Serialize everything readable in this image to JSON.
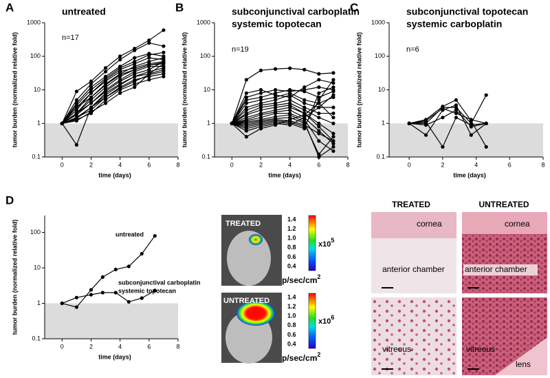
{
  "chart_data": [
    {
      "type": "line",
      "panel_label": "A",
      "title": [
        "untreated"
      ],
      "annotation": "n=17",
      "x_label": "time (days)",
      "y_label": "tumor burden (normalized relative fold)",
      "log_y": true,
      "x": [
        0,
        1,
        2,
        3,
        4,
        5,
        6,
        7
      ],
      "xlim": [
        -1.2,
        8
      ],
      "xticks": [
        0,
        2,
        4,
        6,
        8
      ],
      "ylim": [
        0.1,
        1000
      ],
      "yticks": [
        0.1,
        1,
        10,
        100,
        1000
      ],
      "shaded_region": [
        0.1,
        1
      ],
      "series": [
        {
          "color": "#000000",
          "values": [
            1,
            9,
            18,
            45,
            100,
            170,
            300,
            600
          ]
        },
        {
          "color": "#000000",
          "values": [
            1,
            5,
            15,
            35,
            80,
            150,
            250,
            200
          ]
        },
        {
          "color": "#000000",
          "values": [
            1,
            4,
            12,
            25,
            50,
            90,
            120,
            100
          ]
        },
        {
          "color": "#000000",
          "values": [
            1,
            3,
            8,
            20,
            40,
            60,
            90,
            80
          ]
        },
        {
          "color": "#000000",
          "values": [
            1,
            3,
            6,
            15,
            30,
            50,
            70,
            90
          ]
        },
        {
          "color": "#000000",
          "values": [
            1,
            2.5,
            8,
            18,
            35,
            45,
            60,
            70
          ]
        },
        {
          "color": "#000000",
          "values": [
            1,
            2,
            5,
            12,
            25,
            40,
            55,
            60
          ]
        },
        {
          "color": "#000000",
          "values": [
            1,
            2,
            4,
            10,
            20,
            35,
            50,
            50
          ]
        },
        {
          "color": "#000000",
          "values": [
            1,
            1.8,
            4,
            9,
            18,
            30,
            40,
            70
          ]
        },
        {
          "color": "#000000",
          "values": [
            1,
            1.5,
            3,
            8,
            15,
            25,
            30,
            40
          ]
        },
        {
          "color": "#000000",
          "values": [
            1,
            1.5,
            2.5,
            6,
            12,
            20,
            25,
            30
          ]
        },
        {
          "color": "#000000",
          "values": [
            1,
            1.3,
            2,
            5,
            10,
            15,
            20,
            25
          ]
        },
        {
          "color": "#000000",
          "values": [
            1,
            0.23,
            3,
            7,
            14,
            25,
            35,
            45
          ]
        },
        {
          "color": "#000000",
          "values": [
            1,
            1.2,
            2.2,
            4,
            8,
            12,
            30,
            60
          ]
        },
        {
          "color": "#000000",
          "values": [
            1,
            2,
            6,
            14,
            28,
            40,
            55,
            65
          ]
        },
        {
          "color": "#000000",
          "values": [
            1,
            3.5,
            10,
            22,
            45,
            70,
            110,
            130
          ]
        },
        {
          "color": "#000000",
          "values": [
            1,
            1.4,
            3,
            6,
            11,
            18,
            28,
            35
          ]
        }
      ]
    },
    {
      "type": "line",
      "panel_label": "B",
      "title": [
        "subconjunctival carboplatin",
        "systemic topotecan"
      ],
      "annotation": "n=19",
      "x_label": "time (days)",
      "y_label": "tumor burden (normalized relative fold)",
      "log_y": true,
      "x": [
        0,
        1,
        2,
        3,
        4,
        5,
        6,
        7
      ],
      "xlim": [
        -1.2,
        8
      ],
      "xticks": [
        0,
        2,
        4,
        6,
        8
      ],
      "ylim": [
        0.1,
        1000
      ],
      "yticks": [
        0.1,
        1,
        10,
        100,
        1000
      ],
      "shaded_region": [
        0.1,
        1
      ],
      "series": [
        {
          "color": "#000000",
          "values": [
            1,
            20,
            38,
            42,
            44,
            40,
            30,
            32
          ]
        },
        {
          "color": "#000000",
          "values": [
            1,
            8,
            10,
            7,
            6,
            12,
            20,
            16
          ]
        },
        {
          "color": "#000000",
          "values": [
            1,
            6,
            8,
            10,
            9,
            10,
            12,
            10
          ]
        },
        {
          "color": "#000000",
          "values": [
            1,
            5,
            6,
            8,
            10,
            9,
            6,
            9
          ]
        },
        {
          "color": "#000000",
          "values": [
            1,
            4,
            5,
            6,
            8,
            5,
            4,
            6
          ]
        },
        {
          "color": "#000000",
          "values": [
            1,
            3,
            4,
            5,
            7,
            4,
            3,
            3
          ]
        },
        {
          "color": "#000000",
          "values": [
            1,
            2.5,
            3.5,
            4,
            5,
            3,
            2,
            2
          ]
        },
        {
          "color": "#000000",
          "values": [
            1,
            2,
            3,
            3.5,
            4,
            2.5,
            1.5,
            1
          ]
        },
        {
          "color": "#000000",
          "values": [
            1,
            1.8,
            2.5,
            3,
            3.5,
            2,
            1,
            0.5
          ]
        },
        {
          "color": "#000000",
          "values": [
            1,
            1.5,
            2,
            2.5,
            3,
            2,
            0.8,
            0.3
          ]
        },
        {
          "color": "#000000",
          "values": [
            1,
            1.3,
            1.8,
            2.2,
            2.5,
            1.5,
            0.6,
            0.25
          ]
        },
        {
          "color": "#000000",
          "values": [
            1,
            1.2,
            1.5,
            2,
            2,
            1.3,
            0.3,
            0.15
          ]
        },
        {
          "color": "#000000",
          "values": [
            1,
            1.1,
            1.3,
            1.6,
            1.8,
            1.1,
            0.1,
            0.2
          ]
        },
        {
          "color": "#000000",
          "values": [
            1,
            1,
            1.2,
            1.4,
            1.5,
            1,
            0.12,
            0.4
          ]
        },
        {
          "color": "#000000",
          "values": [
            1,
            0.9,
            1.1,
            1.3,
            1.2,
            0.9,
            0.5,
            0.3
          ]
        },
        {
          "color": "#000000",
          "values": [
            1,
            0.8,
            1,
            1.2,
            1.1,
            0.8,
            5,
            20
          ]
        },
        {
          "color": "#000000",
          "values": [
            1,
            0.7,
            0.9,
            1.1,
            1,
            0.7,
            8,
            12
          ]
        },
        {
          "color": "#000000",
          "values": [
            1,
            0.6,
            0.8,
            1,
            0.9,
            1.5,
            3,
            7
          ]
        },
        {
          "color": "#000000",
          "values": [
            1,
            0.4,
            0.7,
            0.9,
            1.3,
            1.8,
            4,
            1.5
          ]
        }
      ]
    },
    {
      "type": "line",
      "panel_label": "C",
      "title": [
        "subconjunctival topotecan",
        "systemic carboplatin"
      ],
      "annotation": "n=6",
      "x_label": "time (days)",
      "y_label": "tumor burden (normalized relative fold)",
      "log_y": true,
      "x": [
        0,
        1,
        2,
        2.8,
        3.7,
        4.6
      ],
      "xlim": [
        -1.2,
        8
      ],
      "xticks": [
        0,
        2,
        4,
        6,
        8
      ],
      "ylim": [
        0.1,
        1000
      ],
      "yticks": [
        0.1,
        1,
        10,
        100,
        1000
      ],
      "shaded_region": [
        0.1,
        1
      ],
      "series": [
        {
          "color": "#000000",
          "values": [
            1,
            1.3,
            3.2,
            5,
            1.2,
            0.2
          ]
        },
        {
          "color": "#000000",
          "values": [
            1,
            1,
            3,
            3,
            1,
            7
          ]
        },
        {
          "color": "#000000",
          "values": [
            1,
            0.45,
            2.5,
            3.5,
            0.45,
            1
          ]
        },
        {
          "color": "#000000",
          "values": [
            1,
            1.1,
            0.2,
            1.5,
            0.9,
            1
          ]
        },
        {
          "color": "#000000",
          "values": [
            1,
            1.2,
            2.8,
            2,
            1.3,
            1
          ]
        },
        {
          "color": "#000000",
          "values": [
            1,
            0.9,
            1.5,
            2.5,
            0.8,
            1
          ]
        }
      ]
    },
    {
      "type": "line",
      "panel_label": "D",
      "x_label": "time (days)",
      "y_label": "tumor burden (normalized relative fold)",
      "log_y": true,
      "x": [
        0,
        1,
        2,
        2.8,
        3.7,
        4.6,
        5.5,
        6.4
      ],
      "xlim": [
        -1.2,
        8
      ],
      "xticks": [
        0,
        2,
        4,
        6,
        8
      ],
      "ylim": [
        0.1,
        300
      ],
      "yticks": [
        0.1,
        1,
        10,
        100
      ],
      "shaded_region": [
        0.1,
        1
      ],
      "series": [
        {
          "name": [
            "untreated"
          ],
          "color": "#000000",
          "values": [
            1,
            0.78,
            2.4,
            5.5,
            9,
            11,
            25,
            80
          ]
        },
        {
          "name": [
            "subconjunctival carboplatin",
            "systemic topotecan"
          ],
          "color": "#000000",
          "values": [
            1,
            1.45,
            1.75,
            2,
            2,
            1.1,
            1.4,
            2.3
          ]
        }
      ]
    }
  ],
  "imaging": {
    "panels": [
      {
        "label": "TREATED",
        "multiplier": "x10",
        "exponent": "5"
      },
      {
        "label": "UNTREATED",
        "multiplier": "x10",
        "exponent": "6"
      }
    ],
    "scale_ticks": [
      "1.4",
      "1.2",
      "1.0",
      "0.8",
      "0.6",
      "0.4"
    ],
    "unit": "p/sec/cm",
    "unit_exponent": "2"
  },
  "histology": {
    "columns": [
      "TREATED",
      "UNTREATED"
    ],
    "labels": [
      [
        "cornea",
        "anterior chamber"
      ],
      [
        "cornea",
        "anterior chamber"
      ],
      [
        "vitreous"
      ],
      [
        "vitreous",
        "lens"
      ]
    ]
  }
}
